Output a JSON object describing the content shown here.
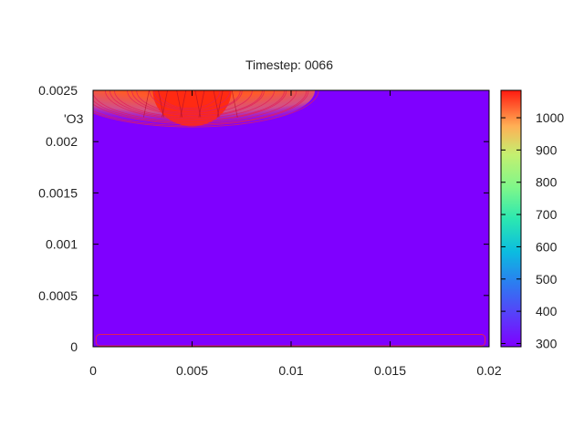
{
  "chart_data": {
    "type": "heatmap",
    "title": "Timestep: 0066",
    "stray_label": "'O3",
    "xlim": [
      0,
      0.02
    ],
    "ylim": [
      0,
      0.0025
    ],
    "x_ticks": [
      {
        "value": 0,
        "label": "0"
      },
      {
        "value": 0.005,
        "label": "0.005"
      },
      {
        "value": 0.01,
        "label": "0.01"
      },
      {
        "value": 0.015,
        "label": "0.015"
      },
      {
        "value": 0.02,
        "label": "0.02"
      }
    ],
    "y_ticks": [
      {
        "value": 0,
        "label": "0"
      },
      {
        "value": 0.0005,
        "label": "0.0005"
      },
      {
        "value": 0.001,
        "label": "0.001"
      },
      {
        "value": 0.0015,
        "label": "0.0015"
      },
      {
        "value": 0.002,
        "label": "0.002"
      },
      {
        "value": 0.0025,
        "label": "0.0025"
      }
    ],
    "colorbar": {
      "min": 290,
      "max": 1085,
      "ticks": [
        {
          "value": 300,
          "label": "300"
        },
        {
          "value": 400,
          "label": "400"
        },
        {
          "value": 500,
          "label": "500"
        },
        {
          "value": 600,
          "label": "600"
        },
        {
          "value": 700,
          "label": "700"
        },
        {
          "value": 800,
          "label": "800"
        },
        {
          "value": 900,
          "label": "900"
        },
        {
          "value": 1000,
          "label": "1000"
        }
      ]
    },
    "background_value": 300,
    "hot_spot": {
      "x_center": 0.005,
      "x_halfwidth": 0.0062,
      "y_top": 0.0025,
      "y_bottom": 0.00215,
      "peak_value": 1075
    },
    "bottom_contour": {
      "x_start": 0.00015,
      "x_end": 0.0198,
      "y": 0.00012
    },
    "grid": false,
    "colors": {
      "contour_line": "#e0205a",
      "frame": "#000000"
    }
  }
}
